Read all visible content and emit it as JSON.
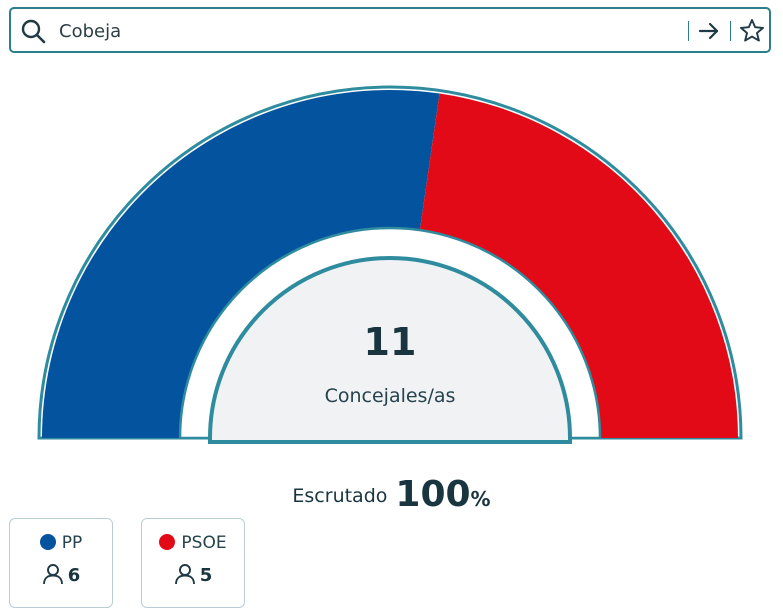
{
  "search": {
    "value": "Cobeja",
    "placeholder": ""
  },
  "icons": {
    "search": "search-icon",
    "go": "arrow-right-icon",
    "favorite": "star-icon",
    "seats": "person-icon"
  },
  "chart_data": {
    "type": "pie",
    "style": "half-donut",
    "total_label_value": "11",
    "total_label_text": "Concejales/as",
    "series": [
      {
        "name": "PP",
        "value": 6,
        "color": "#03539e"
      },
      {
        "name": "PSOE",
        "value": 5,
        "color": "#e20a17"
      }
    ],
    "outline_color": "#2e8c9e"
  },
  "scrutiny": {
    "label": "Escrutado",
    "value": "100",
    "unit": "%"
  },
  "parties": [
    {
      "name": "PP",
      "seats": "6",
      "color": "#03539e"
    },
    {
      "name": "PSOE",
      "seats": "5",
      "color": "#e20a17"
    }
  ]
}
